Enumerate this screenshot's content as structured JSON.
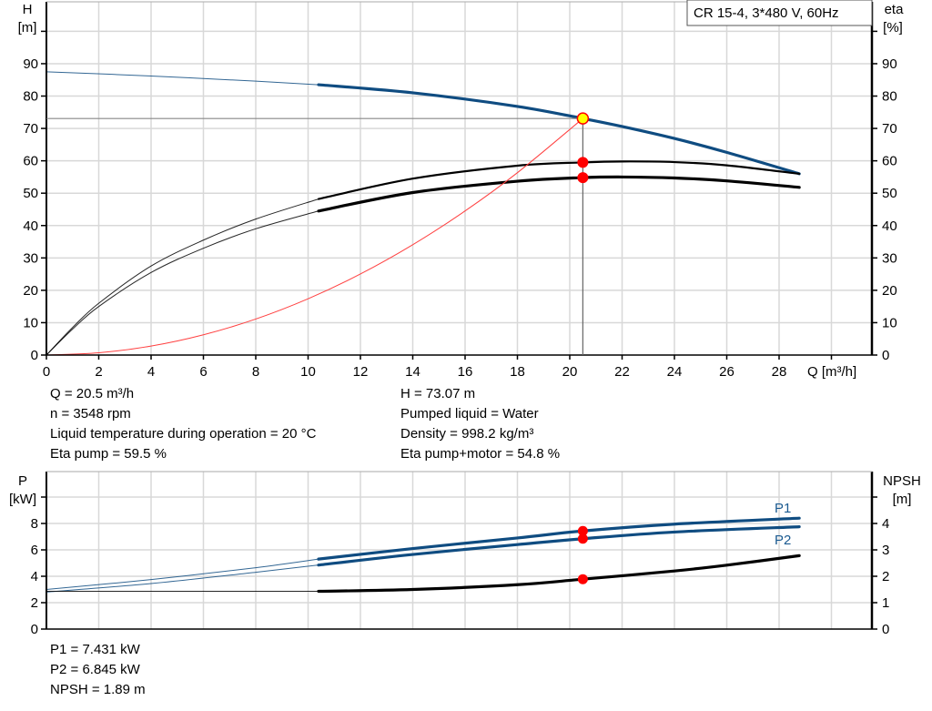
{
  "chart_data": [
    {
      "type": "line",
      "title": "CR 15-4, 3*480 V, 60Hz",
      "xlabel": "Q [m³/h]",
      "ylabel_left": [
        "H",
        "[m]"
      ],
      "ylabel_right": [
        "eta",
        "[%]"
      ],
      "xlim": [
        0,
        31.5
      ],
      "ylim_left": [
        0,
        100
      ],
      "ylim_right": [
        0,
        100
      ],
      "xticks": [
        "0",
        "2",
        "4",
        "6",
        "8",
        "10",
        "12",
        "14",
        "16",
        "18",
        "20",
        "22",
        "24",
        "26",
        "28"
      ],
      "yticks_left": [
        "0",
        "10",
        "20",
        "30",
        "40",
        "50",
        "60",
        "70",
        "80",
        "90"
      ],
      "yticks_right": [
        "0",
        "10",
        "20",
        "30",
        "40",
        "50",
        "60",
        "70",
        "80",
        "90"
      ],
      "grid": true,
      "curve_bold_from_q": 10.4,
      "series": [
        {
          "key": "H",
          "axis": "left",
          "color": "#0f4c81",
          "x": [
            0,
            4,
            8,
            10.4,
            14,
            18,
            20.5,
            22,
            24,
            26,
            28.77
          ],
          "y": [
            87.5,
            86.2,
            84.6,
            83.5,
            81.0,
            76.8,
            73.07,
            70.6,
            66.9,
            62.6,
            56.0
          ]
        },
        {
          "key": "eta_pump",
          "axis": "right",
          "color": "#000000",
          "x": [
            0,
            1,
            2,
            4,
            6,
            8,
            10.4,
            14,
            18,
            20.5,
            22,
            24,
            26,
            28.77
          ],
          "y": [
            0,
            8.5,
            16,
            27.5,
            35.5,
            42,
            48.2,
            54.5,
            58.5,
            59.5,
            59.8,
            59.6,
            58.6,
            56.0
          ]
        },
        {
          "key": "eta_pump_motor",
          "axis": "right",
          "color": "#000000",
          "x": [
            0,
            1,
            2,
            4,
            6,
            8,
            10.4,
            14,
            18,
            20.5,
            22,
            24,
            26,
            28.77
          ],
          "y": [
            0,
            8,
            15,
            25.5,
            33,
            39,
            44.5,
            50.2,
            53.7,
            54.8,
            55.0,
            54.7,
            53.8,
            51.8
          ]
        },
        {
          "key": "system_curve",
          "axis": "left",
          "color": "#ff4040",
          "thin": true,
          "x": [
            0,
            2,
            4,
            6,
            8,
            10,
            12,
            14,
            16,
            18,
            20.5
          ],
          "y": [
            0,
            0.7,
            2.78,
            6.26,
            11.13,
            17.39,
            25.04,
            34.08,
            44.51,
            56.33,
            73.07
          ]
        }
      ],
      "duty_point": {
        "q": 20.5,
        "h": 73.07,
        "eta_pump": 59.5,
        "eta_pump_motor": 54.8
      }
    },
    {
      "type": "line",
      "xlim": [
        0,
        31.5
      ],
      "ylabel_left": [
        "P",
        "[kW]"
      ],
      "ylabel_right": [
        "NPSH",
        "[m]"
      ],
      "ylim_left": [
        0,
        12
      ],
      "ylim_right": [
        0,
        6
      ],
      "yticks_left": [
        "0",
        "2",
        "4",
        "6",
        "8"
      ],
      "yticks_right": [
        "0",
        "1",
        "2",
        "3",
        "4"
      ],
      "grid": true,
      "curve_bold_from_q": 10.4,
      "series": [
        {
          "key": "P1",
          "name": "P1",
          "axis": "left",
          "color": "#0f4c81",
          "x": [
            0,
            4,
            8,
            10.4,
            14,
            18,
            20.5,
            24,
            28.77
          ],
          "y": [
            3.0,
            3.75,
            4.65,
            5.3,
            6.1,
            6.9,
            7.431,
            7.95,
            8.4
          ]
        },
        {
          "key": "P2",
          "name": "P2",
          "axis": "left",
          "color": "#0f4c81",
          "x": [
            0,
            4,
            8,
            10.4,
            14,
            18,
            20.5,
            24,
            28.77
          ],
          "y": [
            2.8,
            3.45,
            4.3,
            4.85,
            5.65,
            6.4,
            6.845,
            7.35,
            7.75
          ]
        },
        {
          "key": "NPSH",
          "axis": "right",
          "color": "#000000",
          "x": [
            0,
            10.4,
            14,
            18,
            20.5,
            24,
            26,
            28.77
          ],
          "y": [
            1.43,
            1.43,
            1.5,
            1.68,
            1.89,
            2.2,
            2.42,
            2.78
          ]
        }
      ],
      "duty_point": {
        "q": 20.5,
        "p1": 7.431,
        "p2": 6.845,
        "npsh": 1.89
      }
    }
  ],
  "info_top_left": [
    "Q = 20.5 m³/h",
    "n = 3548 rpm",
    "Liquid temperature during operation = 20 °C",
    "Eta pump = 59.5 %"
  ],
  "info_top_right": [
    "H = 73.07 m",
    "Pumped liquid = Water",
    "Density = 998.2 kg/m³",
    "Eta pump+motor = 54.8 %"
  ],
  "info_bottom": [
    "P1 = 7.431 kW",
    "P2 = 6.845 kW",
    "NPSH = 1.89 m"
  ]
}
